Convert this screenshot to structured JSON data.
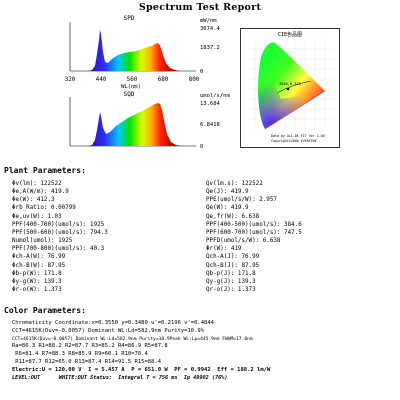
{
  "report_title": "Spectrum Test Report",
  "spd": {
    "title": "SPD",
    "unit": "mW/nm",
    "yticks": [
      "3674.4",
      "1837.2",
      "0"
    ],
    "xticks": [
      "320",
      "440",
      "560",
      "680",
      "800"
    ],
    "xlabel": "WL(nm)"
  },
  "sqd": {
    "title": "SQD",
    "unit": "umol/s/nm",
    "yticks": [
      "13.684",
      "6.8418",
      "0"
    ]
  },
  "cie": {
    "title": "CIE色品图",
    "point_label": "3550,0.348",
    "caption1": "Data by ALL-DE_FIT Ver 1.00",
    "caption2": "Copyright©2000 EVERFINE"
  },
  "plant": {
    "heading": "Plant Parameters:",
    "left": [
      "Φv(lm): 122522",
      "Φe,A(W/m): 419.9",
      "Φe(W): 412.3",
      "Φrb_Ratio: 0.00799",
      "Φe,uv(W): 1.03",
      "PPF(400-700)(umol/s): 1925",
      "PPF(500-600)(umol/s): 794.3",
      "Numol(umol): 1925",
      "PPF(700-800)(umol/s): 40.3",
      "Φch-A(W): 76.99",
      "Φch-B(W): 87.95",
      "Φb-p(W): 171.8",
      "Φy-g(W): 139.3",
      "Φr-o(W): 1.373"
    ],
    "right": [
      "Qv(lm.s): 122522",
      "Qe(J): 419.9",
      "PPE(umol/s/W): 2.957",
      "Qe(W): 419.9",
      "Qe,fr(W): 6.638",
      "PPF(400-500)(umol/s): 384.6",
      "PPF(600-700)(umol/s): 747.5",
      "PPFD(umol/s/W): 6.638",
      "Φr(W): 419",
      "Qch-A(J): 76.99",
      "Qch-B(J): 87.95",
      "Qb-p(J): 171.8",
      "Qy-g(J): 139.3",
      "Qr-o(J): 1.373"
    ]
  },
  "color": {
    "heading": "Color Parameters:",
    "lines": [
      "Chromaticity Coordinate:x=0.3550 y=0.3480 u'=0.2196 v'=0.4844",
      "CCT=4615K(Duv=-0.0057) Dominant WL:Ld=582.9nm Purity=10.9%",
      "CCT=4615K(Duv=-0.0057) Dominant WL:Ld=582.9nm Purity=10.9Peak WL:Lp=445.9nm FWHM=17.0nm",
      "Ra=86.3 R1=88.2 R2=87.7 R3=85.2 R4=86.9 R5=87.8",
      " R6=81.4 R7=88.3 R8=85.9 R9=60.1 R10=70.4",
      " R11=87.7 R12=65.0 R13=87.4 R14=91.5 R15=88.4"
    ],
    "electric": "Electric:U = 120.00 V  I = 5.457 A  P = 651.0 W  PF = 0.9942  Eff = 188.2 lm/W",
    "status": "LEVEL:OUT      WHITE:OUT Status:  Integral T = 756 ms  Ip 49902 (76%)"
  }
}
